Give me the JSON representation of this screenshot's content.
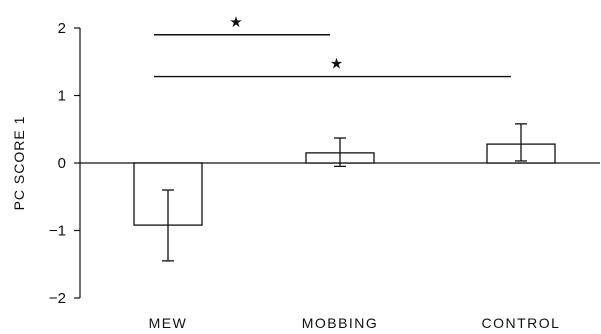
{
  "chart_data": {
    "type": "bar",
    "categories": [
      "MEW",
      "MOBBING",
      "CONTROL"
    ],
    "values": [
      -0.92,
      0.15,
      0.28
    ],
    "errors": [
      {
        "low": -1.45,
        "high": -0.4
      },
      {
        "low": -0.05,
        "high": 0.37
      },
      {
        "low": 0.03,
        "high": 0.58
      }
    ],
    "ylabel": "PC SCORE 1",
    "ylim": [
      -2,
      2
    ],
    "yticks": [
      2,
      1,
      0,
      -1,
      -2
    ],
    "ytick_labels": [
      "2",
      "1",
      "0",
      "−1",
      "−2"
    ],
    "significance": [
      {
        "from": "MEW",
        "to": "MOBBING",
        "y": 1.9,
        "mark": "★"
      },
      {
        "from": "MEW",
        "to": "CONTROL",
        "y": 1.28,
        "mark": "★"
      }
    ],
    "grid": false
  }
}
